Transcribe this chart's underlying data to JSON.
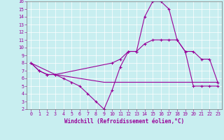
{
  "xlabel": "Windchill (Refroidissement éolien,°C)",
  "background_color": "#c8eef0",
  "line_color": "#990099",
  "grid_color": "#ffffff",
  "xmin": 0,
  "xmax": 23,
  "ymin": 2,
  "ymax": 16,
  "line1_x": [
    0,
    1,
    2,
    3,
    4,
    5,
    6,
    7,
    8,
    9,
    10,
    11,
    12,
    13,
    14,
    15,
    16,
    17,
    18,
    19,
    20,
    21,
    22,
    23
  ],
  "line1_y": [
    8,
    7,
    6.5,
    6.5,
    6,
    5.5,
    5,
    4,
    3,
    2,
    4.5,
    7.5,
    9.5,
    9.5,
    14,
    16,
    16,
    15,
    11,
    9.5,
    5,
    5,
    5,
    5
  ],
  "line2_x": [
    0,
    1,
    2,
    3,
    10,
    11,
    12,
    13,
    14,
    15,
    16,
    17,
    18,
    19,
    20,
    21,
    22,
    23
  ],
  "line2_y": [
    8,
    7,
    6.5,
    6.5,
    8,
    8.5,
    9.5,
    9.5,
    10.5,
    11,
    11,
    11,
    11,
    9.5,
    9.5,
    8.5,
    8.5,
    5.5
  ],
  "line3_x": [
    0,
    3,
    9,
    10,
    23
  ],
  "line3_y": [
    8,
    6.5,
    5.5,
    5.5,
    5.5
  ]
}
